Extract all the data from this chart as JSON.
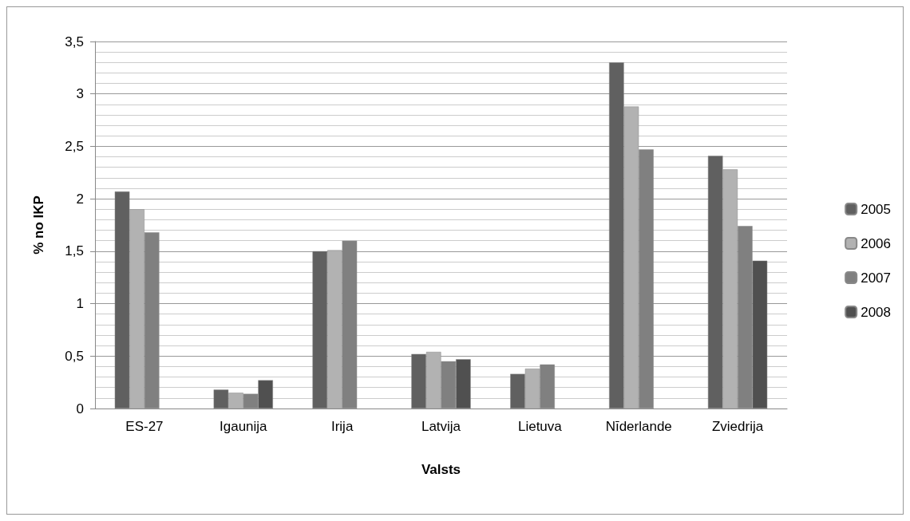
{
  "chart_data": {
    "type": "bar",
    "xlabel": "Valsts",
    "ylabel": "% no IKP",
    "categories": [
      "ES-27",
      "Igaunija",
      "Irija",
      "Latvija",
      "Lietuva",
      "Nīderlande",
      "Zviedrija"
    ],
    "series": [
      {
        "name": "2005",
        "color": "#606060",
        "values": [
          2.07,
          0.18,
          1.5,
          0.52,
          0.33,
          3.3,
          2.41
        ]
      },
      {
        "name": "2006",
        "color": "#b2b2b2",
        "values": [
          1.9,
          0.15,
          1.51,
          0.54,
          0.38,
          2.88,
          2.28
        ]
      },
      {
        "name": "2007",
        "color": "#808080",
        "values": [
          1.68,
          0.14,
          1.6,
          0.45,
          0.42,
          2.47,
          1.74
        ]
      },
      {
        "name": "2008",
        "color": "#505050",
        "values": [
          null,
          0.27,
          null,
          0.47,
          null,
          null,
          1.41
        ]
      }
    ],
    "ylim": [
      0,
      3.5
    ],
    "yticks": [
      0,
      {
        "value": 0.5,
        "label": "0,5"
      },
      1,
      {
        "value": 1.5,
        "label": "1,5"
      },
      2,
      {
        "value": 2.5,
        "label": "2,5"
      },
      3,
      {
        "value": 3.5,
        "label": "3,5"
      }
    ],
    "grid": "y",
    "legend": "right"
  }
}
